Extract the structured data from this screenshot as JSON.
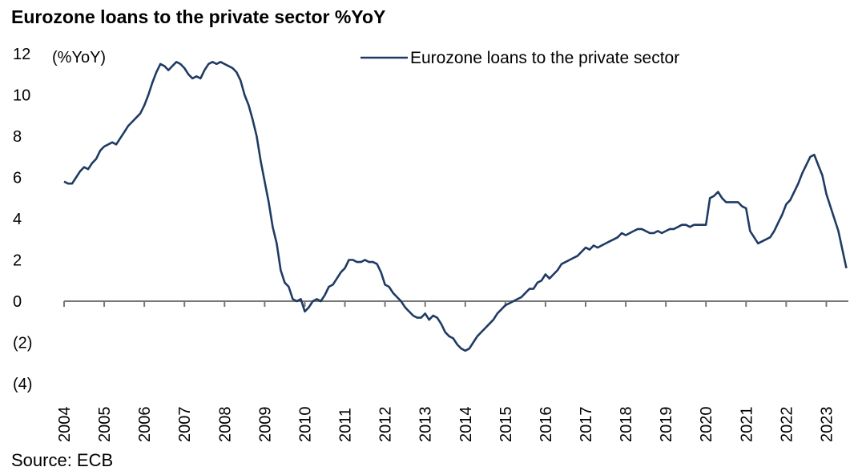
{
  "title": "Eurozone loans to the private sector %YoY",
  "source": "Source: ECB",
  "chart_data": {
    "type": "line",
    "title": "Eurozone loans to the private sector %YoY",
    "ylabel": "(%YoY)",
    "xlabel": "",
    "ylim": [
      -4,
      12
    ],
    "yticks": [
      12,
      10,
      8,
      6,
      4,
      2,
      0,
      -2,
      -4
    ],
    "ytick_labels": [
      "12",
      "10",
      "8",
      "6",
      "4",
      "2",
      "0",
      "(2)",
      "(4)"
    ],
    "xticks": [
      "2004",
      "2005",
      "2006",
      "2007",
      "2008",
      "2009",
      "2010",
      "2011",
      "2012",
      "2013",
      "2014",
      "2015",
      "2016",
      "2017",
      "2018",
      "2019",
      "2020",
      "2021",
      "2022",
      "2023"
    ],
    "legend_position": "top-right",
    "grid": false,
    "colors": {
      "line": "#1f3b63",
      "axis": "#777777"
    },
    "series": [
      {
        "name": "Eurozone loans to the private sector",
        "points": [
          [
            2004.0,
            5.8
          ],
          [
            2004.1,
            5.7
          ],
          [
            2004.2,
            5.7
          ],
          [
            2004.3,
            6.0
          ],
          [
            2004.4,
            6.3
          ],
          [
            2004.5,
            6.5
          ],
          [
            2004.6,
            6.4
          ],
          [
            2004.7,
            6.7
          ],
          [
            2004.8,
            6.9
          ],
          [
            2004.9,
            7.3
          ],
          [
            2005.0,
            7.5
          ],
          [
            2005.1,
            7.6
          ],
          [
            2005.2,
            7.7
          ],
          [
            2005.3,
            7.6
          ],
          [
            2005.4,
            7.9
          ],
          [
            2005.5,
            8.2
          ],
          [
            2005.6,
            8.5
          ],
          [
            2005.7,
            8.7
          ],
          [
            2005.8,
            8.9
          ],
          [
            2005.9,
            9.1
          ],
          [
            2006.0,
            9.5
          ],
          [
            2006.1,
            10.0
          ],
          [
            2006.2,
            10.6
          ],
          [
            2006.3,
            11.1
          ],
          [
            2006.4,
            11.5
          ],
          [
            2006.5,
            11.4
          ],
          [
            2006.6,
            11.2
          ],
          [
            2006.7,
            11.4
          ],
          [
            2006.8,
            11.6
          ],
          [
            2006.9,
            11.5
          ],
          [
            2007.0,
            11.3
          ],
          [
            2007.1,
            11.0
          ],
          [
            2007.2,
            10.8
          ],
          [
            2007.3,
            10.9
          ],
          [
            2007.4,
            10.8
          ],
          [
            2007.5,
            11.2
          ],
          [
            2007.6,
            11.5
          ],
          [
            2007.7,
            11.6
          ],
          [
            2007.8,
            11.5
          ],
          [
            2007.9,
            11.6
          ],
          [
            2008.0,
            11.5
          ],
          [
            2008.1,
            11.4
          ],
          [
            2008.2,
            11.3
          ],
          [
            2008.3,
            11.1
          ],
          [
            2008.4,
            10.7
          ],
          [
            2008.5,
            10.0
          ],
          [
            2008.6,
            9.5
          ],
          [
            2008.7,
            8.8
          ],
          [
            2008.8,
            8.0
          ],
          [
            2008.9,
            6.8
          ],
          [
            2009.0,
            5.8
          ],
          [
            2009.1,
            4.8
          ],
          [
            2009.2,
            3.6
          ],
          [
            2009.3,
            2.8
          ],
          [
            2009.4,
            1.5
          ],
          [
            2009.5,
            0.9
          ],
          [
            2009.6,
            0.7
          ],
          [
            2009.7,
            0.1
          ],
          [
            2009.8,
            0.0
          ],
          [
            2009.9,
            0.1
          ],
          [
            2010.0,
            -0.5
          ],
          [
            2010.1,
            -0.3
          ],
          [
            2010.2,
            0.0
          ],
          [
            2010.3,
            0.1
          ],
          [
            2010.4,
            0.0
          ],
          [
            2010.5,
            0.3
          ],
          [
            2010.6,
            0.7
          ],
          [
            2010.7,
            0.8
          ],
          [
            2010.8,
            1.1
          ],
          [
            2010.9,
            1.4
          ],
          [
            2011.0,
            1.6
          ],
          [
            2011.1,
            2.0
          ],
          [
            2011.2,
            2.0
          ],
          [
            2011.3,
            1.9
          ],
          [
            2011.4,
            1.9
          ],
          [
            2011.5,
            2.0
          ],
          [
            2011.6,
            1.9
          ],
          [
            2011.7,
            1.9
          ],
          [
            2011.8,
            1.8
          ],
          [
            2011.9,
            1.4
          ],
          [
            2012.0,
            0.8
          ],
          [
            2012.1,
            0.7
          ],
          [
            2012.2,
            0.4
          ],
          [
            2012.3,
            0.2
          ],
          [
            2012.4,
            0.0
          ],
          [
            2012.5,
            -0.3
          ],
          [
            2012.6,
            -0.5
          ],
          [
            2012.7,
            -0.7
          ],
          [
            2012.8,
            -0.8
          ],
          [
            2012.9,
            -0.8
          ],
          [
            2013.0,
            -0.6
          ],
          [
            2013.1,
            -0.9
          ],
          [
            2013.2,
            -0.7
          ],
          [
            2013.3,
            -0.8
          ],
          [
            2013.4,
            -1.1
          ],
          [
            2013.5,
            -1.5
          ],
          [
            2013.6,
            -1.7
          ],
          [
            2013.7,
            -1.8
          ],
          [
            2013.8,
            -2.1
          ],
          [
            2013.9,
            -2.3
          ],
          [
            2014.0,
            -2.4
          ],
          [
            2014.1,
            -2.3
          ],
          [
            2014.2,
            -2.0
          ],
          [
            2014.3,
            -1.7
          ],
          [
            2014.4,
            -1.5
          ],
          [
            2014.5,
            -1.3
          ],
          [
            2014.6,
            -1.1
          ],
          [
            2014.7,
            -0.9
          ],
          [
            2014.8,
            -0.6
          ],
          [
            2014.9,
            -0.4
          ],
          [
            2015.0,
            -0.2
          ],
          [
            2015.1,
            -0.1
          ],
          [
            2015.2,
            0.0
          ],
          [
            2015.3,
            0.1
          ],
          [
            2015.4,
            0.2
          ],
          [
            2015.5,
            0.4
          ],
          [
            2015.6,
            0.6
          ],
          [
            2015.7,
            0.6
          ],
          [
            2015.8,
            0.9
          ],
          [
            2015.9,
            1.0
          ],
          [
            2016.0,
            1.3
          ],
          [
            2016.1,
            1.1
          ],
          [
            2016.2,
            1.3
          ],
          [
            2016.3,
            1.5
          ],
          [
            2016.4,
            1.8
          ],
          [
            2016.5,
            1.9
          ],
          [
            2016.6,
            2.0
          ],
          [
            2016.7,
            2.1
          ],
          [
            2016.8,
            2.2
          ],
          [
            2016.9,
            2.4
          ],
          [
            2017.0,
            2.6
          ],
          [
            2017.1,
            2.5
          ],
          [
            2017.2,
            2.7
          ],
          [
            2017.3,
            2.6
          ],
          [
            2017.4,
            2.7
          ],
          [
            2017.5,
            2.8
          ],
          [
            2017.6,
            2.9
          ],
          [
            2017.7,
            3.0
          ],
          [
            2017.8,
            3.1
          ],
          [
            2017.9,
            3.3
          ],
          [
            2018.0,
            3.2
          ],
          [
            2018.1,
            3.3
          ],
          [
            2018.2,
            3.4
          ],
          [
            2018.3,
            3.5
          ],
          [
            2018.4,
            3.5
          ],
          [
            2018.5,
            3.4
          ],
          [
            2018.6,
            3.3
          ],
          [
            2018.7,
            3.3
          ],
          [
            2018.8,
            3.4
          ],
          [
            2018.9,
            3.3
          ],
          [
            2019.0,
            3.4
          ],
          [
            2019.1,
            3.5
          ],
          [
            2019.2,
            3.5
          ],
          [
            2019.3,
            3.6
          ],
          [
            2019.4,
            3.7
          ],
          [
            2019.5,
            3.7
          ],
          [
            2019.6,
            3.6
          ],
          [
            2019.7,
            3.7
          ],
          [
            2019.8,
            3.7
          ],
          [
            2019.9,
            3.7
          ],
          [
            2020.0,
            3.7
          ],
          [
            2020.1,
            5.0
          ],
          [
            2020.2,
            5.1
          ],
          [
            2020.3,
            5.3
          ],
          [
            2020.4,
            5.0
          ],
          [
            2020.5,
            4.8
          ],
          [
            2020.6,
            4.8
          ],
          [
            2020.7,
            4.8
          ],
          [
            2020.8,
            4.8
          ],
          [
            2020.9,
            4.6
          ],
          [
            2021.0,
            4.5
          ],
          [
            2021.1,
            3.4
          ],
          [
            2021.2,
            3.1
          ],
          [
            2021.3,
            2.8
          ],
          [
            2021.4,
            2.9
          ],
          [
            2021.5,
            3.0
          ],
          [
            2021.6,
            3.1
          ],
          [
            2021.7,
            3.4
          ],
          [
            2021.8,
            3.8
          ],
          [
            2021.9,
            4.2
          ],
          [
            2022.0,
            4.7
          ],
          [
            2022.1,
            4.9
          ],
          [
            2022.2,
            5.3
          ],
          [
            2022.3,
            5.7
          ],
          [
            2022.4,
            6.2
          ],
          [
            2022.5,
            6.6
          ],
          [
            2022.6,
            7.0
          ],
          [
            2022.7,
            7.1
          ],
          [
            2022.8,
            6.6
          ],
          [
            2022.9,
            6.1
          ],
          [
            2023.0,
            5.2
          ],
          [
            2023.1,
            4.6
          ],
          [
            2023.2,
            4.0
          ],
          [
            2023.3,
            3.4
          ],
          [
            2023.4,
            2.5
          ],
          [
            2023.5,
            1.6
          ]
        ]
      }
    ]
  }
}
